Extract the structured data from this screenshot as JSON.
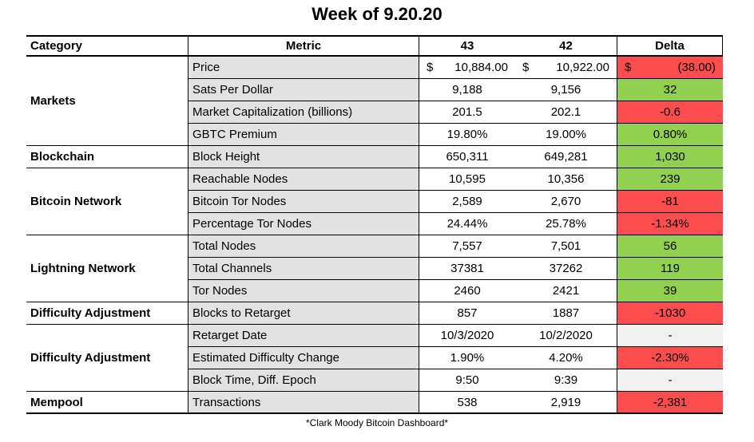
{
  "title": "Week of 9.20.20",
  "footer_note": "*Clark Moody Bitcoin Dashboard*",
  "colors": {
    "positive": "#92D050",
    "negative": "#FB4D4D",
    "neutral": "#F0F0F0",
    "metric_bg": "#E2E2E2",
    "border": "#000000"
  },
  "table": {
    "headers": {
      "category": "Category",
      "metric": "Metric",
      "week_current": "43",
      "week_prior": "42",
      "delta": "Delta"
    },
    "groups": [
      {
        "label": "Markets",
        "row_span": 4
      },
      {
        "label": "Blockchain",
        "row_span": 1
      },
      {
        "label": "Bitcoin Network",
        "row_span": 3
      },
      {
        "label": "Lightning Network",
        "row_span": 3
      },
      {
        "label": "Difficulty Adjustment",
        "row_span": 1
      },
      {
        "label": "Difficulty Adjustment",
        "row_span": 3
      },
      {
        "label": "Mempool",
        "row_span": 1
      }
    ],
    "rows": [
      {
        "metric": "Price",
        "w43_sym": "$",
        "w43": "10,884.00",
        "w42_sym": "$",
        "w42": "10,922.00",
        "delta_sym": "$",
        "delta": "(38.00)",
        "delta_state": "negative"
      },
      {
        "metric": "Sats Per Dollar",
        "w43": "9,188",
        "w42": "9,156",
        "delta": "32",
        "delta_state": "positive"
      },
      {
        "metric": "Market Capitalization (billions)",
        "w43": "201.5",
        "w42": "202.1",
        "delta": "-0.6",
        "delta_state": "negative"
      },
      {
        "metric": "GBTC Premium",
        "w43": "19.80%",
        "w42": "19.00%",
        "delta": "0.80%",
        "delta_state": "positive"
      },
      {
        "metric": "Block Height",
        "w43": "650,311",
        "w42": "649,281",
        "delta": "1,030",
        "delta_state": "positive"
      },
      {
        "metric": "Reachable Nodes",
        "w43": "10,595",
        "w42": "10,356",
        "delta": "239",
        "delta_state": "positive"
      },
      {
        "metric": "Bitcoin Tor Nodes",
        "w43": "2,589",
        "w42": "2,670",
        "delta": "-81",
        "delta_state": "negative"
      },
      {
        "metric": "Percentage Tor Nodes",
        "w43": "24.44%",
        "w42": "25.78%",
        "delta": "-1.34%",
        "delta_state": "negative"
      },
      {
        "metric": "Total Nodes",
        "w43": "7,557",
        "w42": "7,501",
        "delta": "56",
        "delta_state": "positive"
      },
      {
        "metric": "Total Channels",
        "w43": "37381",
        "w42": "37262",
        "delta": "119",
        "delta_state": "positive"
      },
      {
        "metric": "Tor Nodes",
        "w43": "2460",
        "w42": "2421",
        "delta": "39",
        "delta_state": "positive"
      },
      {
        "metric": "Blocks to Retarget",
        "w43": "857",
        "w42": "1887",
        "delta": "-1030",
        "delta_state": "negative"
      },
      {
        "metric": "Retarget Date",
        "w43": "10/3/2020",
        "w42": "10/2/2020",
        "delta": "-",
        "delta_state": "neutral"
      },
      {
        "metric": "Estimated Difficulty Change",
        "w43": "1.90%",
        "w42": "4.20%",
        "delta": "-2.30%",
        "delta_state": "negative"
      },
      {
        "metric": "Block Time, Diff. Epoch",
        "w43": "9:50",
        "w42": "9:39",
        "delta": "-",
        "delta_state": "neutral"
      },
      {
        "metric": "Transactions",
        "w43": "538",
        "w42": "2,919",
        "delta": "-2,381",
        "delta_state": "negative"
      }
    ]
  }
}
